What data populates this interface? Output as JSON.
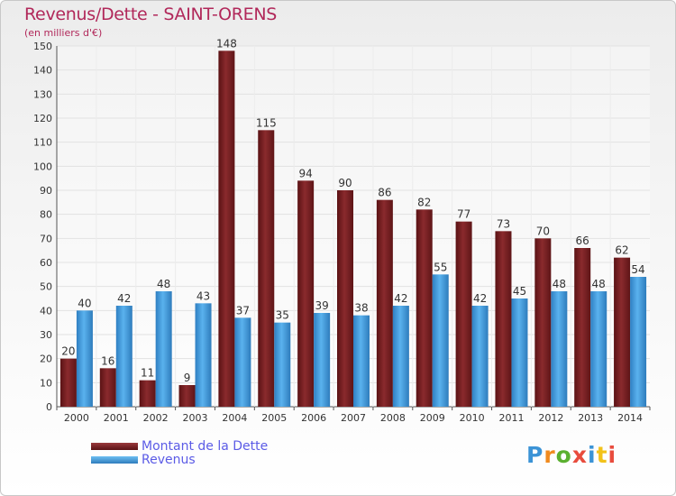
{
  "header": {
    "title": "Revenus/Dette - SAINT-ORENS",
    "subtitle": "(en milliers d'€)"
  },
  "legend": {
    "items": [
      "Montant de la Dette",
      "Revenus"
    ]
  },
  "logo": {
    "text": "Proxiti"
  },
  "colors": {
    "dette": "#7a1f22",
    "revenus": "#3b93d6",
    "title": "#b1285a",
    "legend_text": "#5b5be6"
  },
  "chart_data": {
    "type": "bar",
    "title": "Revenus/Dette - SAINT-ORENS",
    "ylabel": "(en milliers d'€)",
    "xlabel": "",
    "categories": [
      "2000",
      "2001",
      "2002",
      "2003",
      "2004",
      "2005",
      "2006",
      "2007",
      "2008",
      "2009",
      "2010",
      "2011",
      "2012",
      "2013",
      "2014"
    ],
    "series": [
      {
        "name": "Montant de la Dette",
        "values": [
          20,
          16,
          11,
          9,
          148,
          115,
          94,
          90,
          86,
          82,
          77,
          73,
          70,
          66,
          62
        ]
      },
      {
        "name": "Revenus",
        "values": [
          40,
          42,
          48,
          43,
          37,
          35,
          39,
          38,
          42,
          55,
          42,
          45,
          48,
          48,
          54
        ]
      }
    ],
    "ylim": [
      0,
      150
    ],
    "yticks": [
      0,
      10,
      20,
      30,
      40,
      50,
      60,
      70,
      80,
      90,
      100,
      110,
      120,
      130,
      140,
      150
    ],
    "grid": true,
    "legend_position": "bottom-left"
  }
}
